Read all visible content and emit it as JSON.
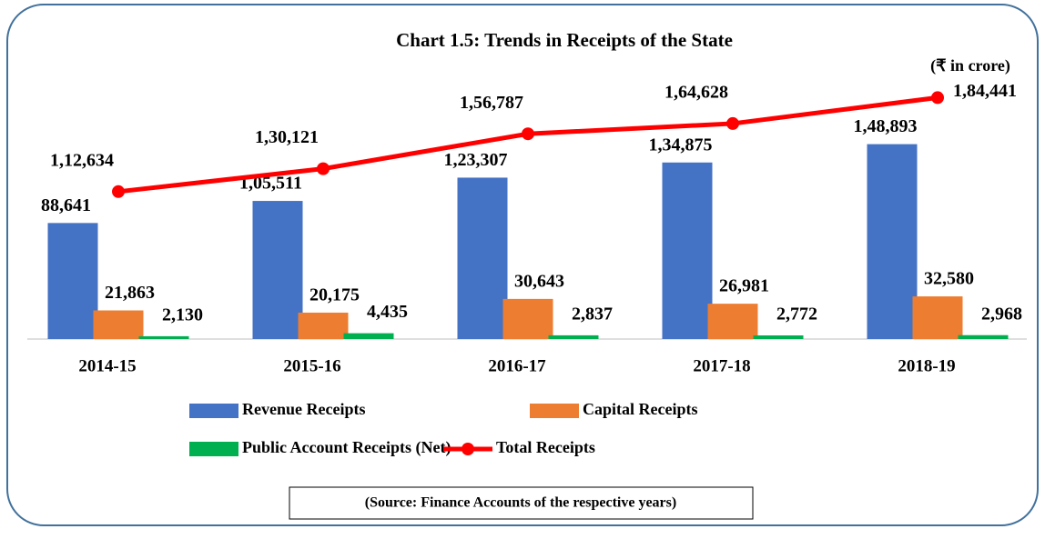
{
  "chart_data": {
    "type": "bar_line",
    "title": "Chart 1.5: Trends in Receipts of the State",
    "unit_label": "(₹ in crore)",
    "source": "(Source: Finance Accounts of the respective years)",
    "categories": [
      "2014-15",
      "2015-16",
      "2016-17",
      "2017-18",
      "2018-19"
    ],
    "ylim": [
      0,
      200000
    ],
    "series": [
      {
        "name": "Revenue Receipts",
        "color": "#4472c4",
        "kind": "bar",
        "values": [
          88641,
          105511,
          123307,
          134875,
          148893
        ],
        "value_labels": [
          "88,641",
          "1,05,511",
          "1,23,307",
          "1,34,875",
          "1,48,893"
        ]
      },
      {
        "name": "Capital Receipts",
        "color": "#ed7d31",
        "kind": "bar",
        "values": [
          21863,
          20175,
          30643,
          26981,
          32580
        ],
        "value_labels": [
          "21,863",
          "20,175",
          "30,643",
          "26,981",
          "32,580"
        ]
      },
      {
        "name": "Public  Account Receipts (Net)",
        "color": "#00b050",
        "kind": "bar",
        "values": [
          2130,
          4435,
          2837,
          2772,
          2968
        ],
        "value_labels": [
          "2,130",
          "4,435",
          "2,837",
          "2,772",
          "2,968"
        ]
      },
      {
        "name": "Total Receipts",
        "color": "#ff0000",
        "kind": "line",
        "values": [
          112634,
          130121,
          156787,
          164628,
          184441
        ],
        "value_labels": [
          "1,12,634",
          "1,30,121",
          "1,56,787",
          "1,64,628",
          "1,84,441"
        ]
      }
    ]
  }
}
